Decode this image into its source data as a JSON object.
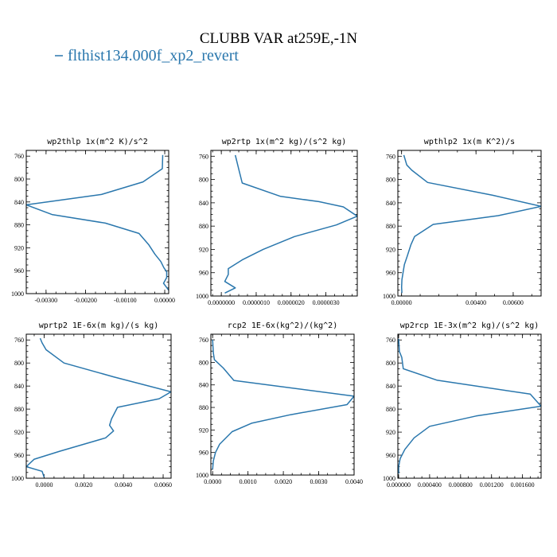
{
  "figure": {
    "title": "CLUBB VAR at259E,-1N",
    "legend": {
      "label": "flthist134.000f_xp2_revert",
      "color": "#2a77ad"
    }
  },
  "chart_data": [
    {
      "type": "line",
      "title": "wp2thlp  1x(m^2 K)/s^2",
      "xlim": [
        -0.0035,
        0.0001
      ],
      "ylim": [
        1000,
        750
      ],
      "x_ticks": [
        -0.003,
        -0.002,
        -0.001,
        0.0
      ],
      "x_tick_labels": [
        "-0.00300",
        "-0.00200",
        "-0.00100",
        "0.00000"
      ],
      "y_ticks": [
        760,
        800,
        840,
        880,
        920,
        960,
        1000
      ],
      "y_tick_labels": [
        "760",
        "800",
        "840",
        "880",
        "920",
        "960",
        "1000"
      ],
      "series": [
        {
          "x": [
            -5e-05,
            -6e-05,
            -0.00055,
            -0.0016,
            -0.0035,
            -0.00285,
            -0.0015,
            -0.00065,
            -0.0004,
            -0.00025,
            -0.0001,
            -2e-05,
            5e-05,
            5e-05,
            -3e-05,
            0.0001
          ],
          "y": [
            758,
            782,
            805,
            827,
            845,
            862,
            877,
            895,
            915,
            931,
            944,
            955,
            962,
            972,
            982,
            994
          ]
        }
      ]
    },
    {
      "type": "line",
      "title": "wp2rtp  1x(m^2 kg)/(s^2 kg)",
      "xlim": [
        -3e-07,
        3.9e-06
      ],
      "ylim": [
        1000,
        750
      ],
      "x_ticks": [
        0.0,
        1e-06,
        2e-06,
        3e-06
      ],
      "x_tick_labels": [
        "0.0000000",
        "0.0000010",
        "0.0000020",
        "0.0000030"
      ],
      "y_ticks": [
        760,
        800,
        840,
        880,
        920,
        960,
        1000
      ],
      "y_tick_labels": [
        "760",
        "800",
        "840",
        "880",
        "920",
        "960",
        "1000"
      ],
      "series": [
        {
          "x": [
            4e-07,
            5e-07,
            6e-07,
            1.7e-06,
            2.8e-06,
            3.5e-06,
            3.9e-06,
            3.3e-06,
            2.1e-06,
            1.2e-06,
            6e-07,
            2e-07,
            2e-07,
            1e-07,
            4e-07,
            1e-07
          ],
          "y": [
            758,
            782,
            806,
            829,
            838,
            847,
            863,
            878,
            898,
            920,
            938,
            953,
            963,
            975,
            986,
            995
          ]
        }
      ]
    },
    {
      "type": "line",
      "title": "wpthlp2  1x(m K^2)/s",
      "xlim": [
        -0.0002,
        0.0075
      ],
      "ylim": [
        1000,
        750
      ],
      "x_ticks": [
        0.0,
        0.004,
        0.006
      ],
      "x_tick_labels": [
        "0.00000",
        "0.00400",
        "0.00600"
      ],
      "y_ticks": [
        760,
        800,
        840,
        880,
        920,
        960,
        1000
      ],
      "y_tick_labels": [
        "760",
        "800",
        "840",
        "880",
        "920",
        "960",
        "1000"
      ],
      "series": [
        {
          "x": [
            0.00012,
            0.00028,
            0.00055,
            0.0014,
            0.0049,
            0.0075,
            0.0052,
            0.0017,
            0.0007,
            0.0005,
            0.0003,
            0.00015,
            8e-05,
            2e-05,
            0.0,
            2e-05
          ],
          "y": [
            758,
            775,
            784,
            805,
            827,
            846,
            862,
            877,
            898,
            912,
            932,
            946,
            960,
            972,
            985,
            995
          ]
        }
      ]
    },
    {
      "type": "line",
      "title": "wprtp2  1E-6x(m kg)/(s kg)",
      "xlim": [
        -0.0009,
        0.0064
      ],
      "ylim": [
        1000,
        750
      ],
      "x_ticks": [
        0.0,
        0.002,
        0.004,
        0.006
      ],
      "x_tick_labels": [
        "0.0000",
        "0.0020",
        "0.0040",
        "0.0060"
      ],
      "y_ticks": [
        760,
        800,
        840,
        880,
        920,
        960,
        1000
      ],
      "y_tick_labels": [
        "760",
        "800",
        "840",
        "880",
        "920",
        "960",
        "1000"
      ],
      "series": [
        {
          "x": [
            -0.0002,
            -0.0001,
            0.0001,
            0.001,
            0.0035,
            0.0064,
            0.0058,
            0.0037,
            0.0034,
            0.0033,
            0.0035,
            0.0031,
            0.0008,
            -0.0005,
            -0.0009,
            -0.0001,
            0.0
          ],
          "y": [
            757,
            765,
            777,
            800,
            824,
            850,
            862,
            877,
            897,
            908,
            918,
            930,
            953,
            967,
            980,
            988,
            998
          ]
        }
      ]
    },
    {
      "type": "line",
      "title": "rcp2  1E-6x(kg^2)/(kg^2)",
      "xlim": [
        -5e-05,
        0.004
      ],
      "ylim": [
        1000,
        750
      ],
      "x_ticks": [
        0.0,
        0.001,
        0.002,
        0.003,
        0.004
      ],
      "x_tick_labels": [
        "0.0000",
        "0.0010",
        "0.0020",
        "0.0030",
        "0.0040"
      ],
      "y_ticks": [
        760,
        800,
        840,
        880,
        920,
        960,
        1000
      ],
      "y_tick_labels": [
        "760",
        "800",
        "840",
        "880",
        "920",
        "960",
        "1000"
      ],
      "series": [
        {
          "x": [
            0.0,
            2e-05,
            5e-05,
            0.0003,
            0.0006,
            0.004,
            0.0038,
            0.0022,
            0.0011,
            0.00055,
            0.0002,
            8e-05,
            2e-05,
            0.0
          ],
          "y": [
            760,
            783,
            795,
            810,
            832,
            860,
            875,
            893,
            908,
            923,
            945,
            960,
            975,
            990
          ]
        }
      ]
    },
    {
      "type": "line",
      "title": "wp2rcp  1E-3x(m^2 kg)/(s^2 kg)",
      "xlim": [
        -1e-05,
        0.00184
      ],
      "ylim": [
        1000,
        750
      ],
      "x_ticks": [
        0.0,
        0.0004,
        0.0008,
        0.0012,
        0.0016
      ],
      "x_tick_labels": [
        "0.000000",
        "0.000400",
        "0.000800",
        "0.001200",
        "0.001600"
      ],
      "y_ticks": [
        760,
        800,
        840,
        880,
        920,
        960,
        1000
      ],
      "y_tick_labels": [
        "760",
        "800",
        "840",
        "880",
        "920",
        "960",
        "1000"
      ],
      "series": [
        {
          "x": [
            0.0,
            1e-05,
            4e-05,
            6e-05,
            0.0005,
            0.0017,
            0.00184,
            0.001,
            0.0004,
            0.0002,
            8e-05,
            2e-05,
            0.0,
            0.0
          ],
          "y": [
            758,
            780,
            790,
            810,
            830,
            854,
            875,
            892,
            910,
            930,
            950,
            966,
            980,
            992
          ]
        }
      ]
    }
  ]
}
